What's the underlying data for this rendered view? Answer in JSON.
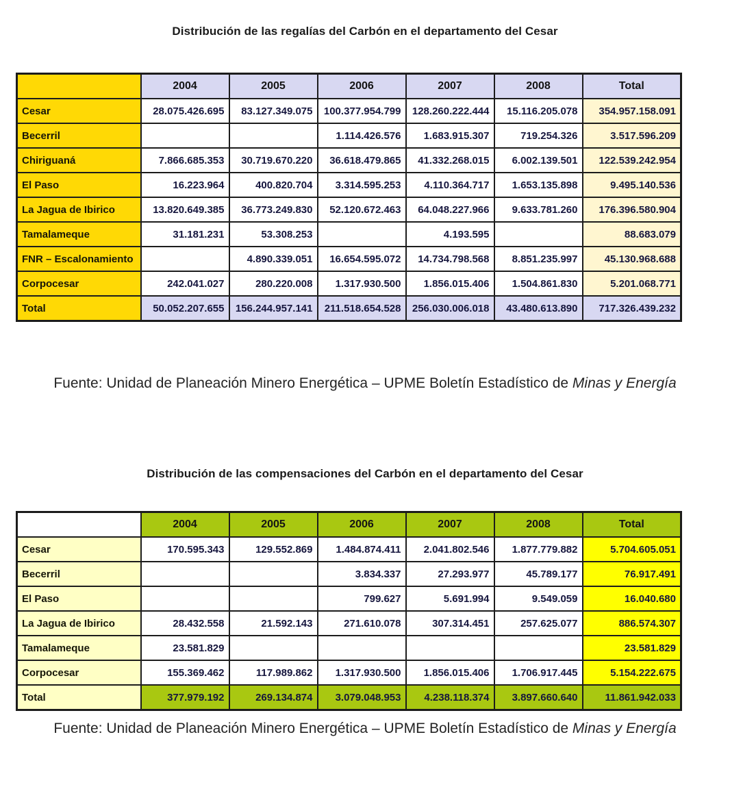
{
  "colors": {
    "table1_label_bg": "#FFD905",
    "table1_header_bg": "#D8D8F2",
    "table1_total_col_bg": "#FFF6D0",
    "table2_label_bg": "#FFFFC5",
    "table2_header_bg": "#A9C811",
    "table2_total_col_bg": "#FFFF00",
    "border": "#1C1C1C",
    "number_text": "#16163E",
    "label_text": "#161608"
  },
  "table1": {
    "title": "Distribución de las regalías del Carbón en el departamento del Cesar",
    "columns": [
      "",
      "2004",
      "2005",
      "2006",
      "2007",
      "2008",
      "Total"
    ],
    "rows": [
      {
        "label": "Cesar",
        "values": [
          "28.075.426.695",
          "83.127.349.075",
          "100.377.954.799",
          "128.260.222.444",
          "15.116.205.078",
          "354.957.158.091"
        ]
      },
      {
        "label": "Becerril",
        "values": [
          "",
          "",
          "1.114.426.576",
          "1.683.915.307",
          "719.254.326",
          "3.517.596.209"
        ]
      },
      {
        "label": "Chiriguaná",
        "values": [
          "7.866.685.353",
          "30.719.670.220",
          "36.618.479.865",
          "41.332.268.015",
          "6.002.139.501",
          "122.539.242.954"
        ]
      },
      {
        "label": "El Paso",
        "values": [
          "16.223.964",
          "400.820.704",
          "3.314.595.253",
          "4.110.364.717",
          "1.653.135.898",
          "9.495.140.536"
        ]
      },
      {
        "label": "La Jagua de Ibirico",
        "values": [
          "13.820.649.385",
          "36.773.249.830",
          "52.120.672.463",
          "64.048.227.966",
          "9.633.781.260",
          "176.396.580.904"
        ]
      },
      {
        "label": "Tamalameque",
        "values": [
          "31.181.231",
          "53.308.253",
          "",
          "4.193.595",
          "",
          "88.683.079"
        ]
      },
      {
        "label": "FNR – Escalonamiento",
        "values": [
          "",
          "4.890.339.051",
          "16.654.595.072",
          "14.734.798.568",
          "8.851.235.997",
          "45.130.968.688"
        ]
      },
      {
        "label": "Corpocesar",
        "values": [
          "242.041.027",
          "280.220.008",
          "1.317.930.500",
          "1.856.015.406",
          "1.504.861.830",
          "5.201.068.771"
        ]
      }
    ],
    "total_row": {
      "label": "Total",
      "values": [
        "50.052.207.655",
        "156.244.957.141",
        "211.518.654.528",
        "256.030.006.018",
        "43.480.613.890",
        "717.326.439.232"
      ]
    },
    "source": "Fuente: Unidad de Planeación Minero Energética – UPME Boletín Estadístico de ",
    "source_italic": "Minas y Energía"
  },
  "table2": {
    "title": "Distribución de las compensaciones del Carbón en el departamento del Cesar",
    "columns": [
      "",
      "2004",
      "2005",
      "2006",
      "2007",
      "2008",
      "Total"
    ],
    "rows": [
      {
        "label": "Cesar",
        "values": [
          "170.595.343",
          "129.552.869",
          "1.484.874.411",
          "2.041.802.546",
          "1.877.779.882",
          "5.704.605.051"
        ]
      },
      {
        "label": "Becerril",
        "values": [
          "",
          "",
          "3.834.337",
          "27.293.977",
          "45.789.177",
          "76.917.491"
        ]
      },
      {
        "label": "El Paso",
        "values": [
          "",
          "",
          "799.627",
          "5.691.994",
          "9.549.059",
          "16.040.680"
        ]
      },
      {
        "label": "La Jagua de Ibirico",
        "values": [
          "28.432.558",
          "21.592.143",
          "271.610.078",
          "307.314.451",
          "257.625.077",
          "886.574.307"
        ]
      },
      {
        "label": "Tamalameque",
        "values": [
          "23.581.829",
          "",
          "",
          "",
          "",
          "23.581.829"
        ]
      },
      {
        "label": "Corpocesar",
        "values": [
          "155.369.462",
          "117.989.862",
          "1.317.930.500",
          "1.856.015.406",
          "1.706.917.445",
          "5.154.222.675"
        ]
      }
    ],
    "total_row": {
      "label": "Total",
      "values": [
        "377.979.192",
        "269.134.874",
        "3.079.048.953",
        "4.238.118.374",
        "3.897.660.640",
        "11.861.942.033"
      ]
    },
    "source": "Fuente: Unidad de Planeación Minero Energética – UPME Boletín Estadístico de ",
    "source_italic": "Minas y Energía"
  }
}
